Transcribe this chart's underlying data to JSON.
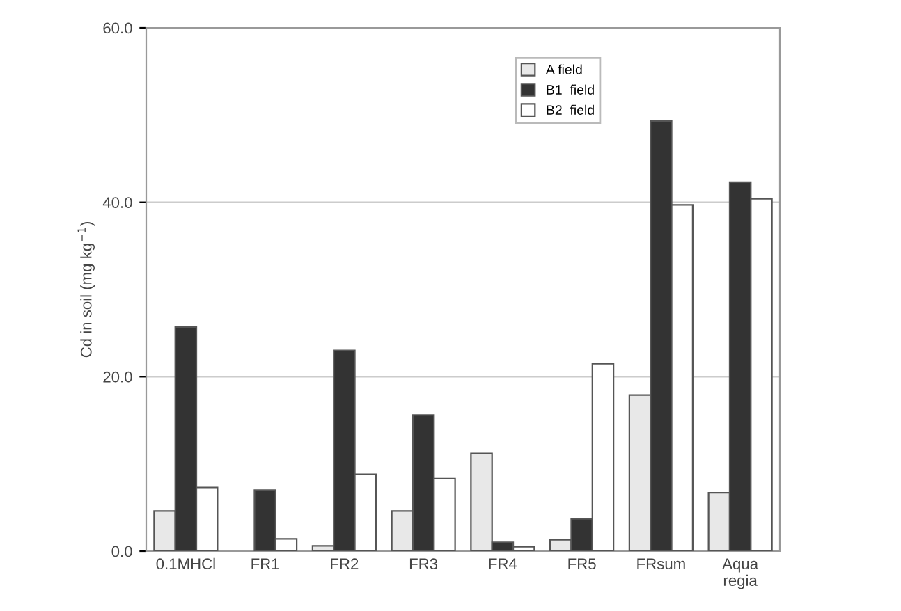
{
  "chart_data": {
    "type": "bar",
    "ylabel": "Cd in soil (mg kg$^{−1}$)",
    "categories": [
      "0.1MHCl",
      "FR1",
      "FR2",
      "FR3",
      "FR4",
      "FR5",
      "FRsum",
      "Aqua\nregia"
    ],
    "series": [
      {
        "name": "A field",
        "color": "#e8e8e8",
        "values": [
          4.6,
          null,
          0.6,
          4.6,
          11.2,
          1.3,
          17.9,
          6.7
        ]
      },
      {
        "name": "B1  field",
        "color": "#333333",
        "values": [
          25.7,
          7.0,
          23.0,
          15.6,
          1.0,
          3.7,
          49.3,
          42.3
        ]
      },
      {
        "name": "B2  field",
        "color": "#ffffff",
        "values": [
          7.3,
          1.4,
          8.8,
          8.3,
          0.5,
          21.5,
          39.7,
          40.4
        ]
      }
    ],
    "ylim": [
      0,
      60
    ],
    "yticks": [
      {
        "value": 0,
        "label": "0.0"
      },
      {
        "value": 20,
        "label": "20.0"
      },
      {
        "value": 40,
        "label": "40.0"
      },
      {
        "value": 60,
        "label": "60.0"
      }
    ],
    "grid": "y",
    "legend": "top"
  }
}
